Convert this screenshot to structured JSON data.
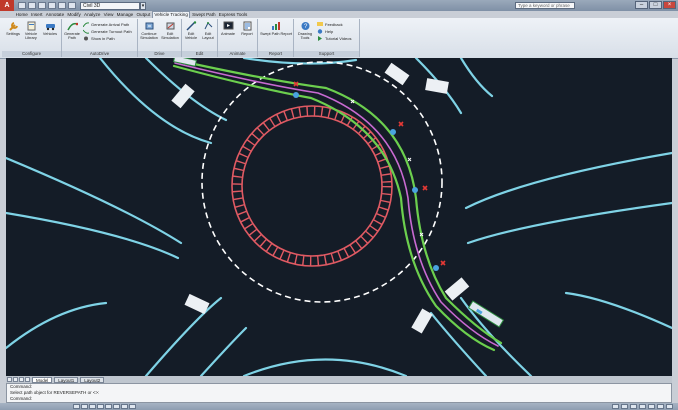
{
  "window": {
    "app_logo": "A",
    "workspace": "Civil 3D",
    "document_title": "",
    "help_search_placeholder": "Type a keyword or phrase",
    "controls": {
      "minimize": "–",
      "maximize": "□",
      "close": "×"
    }
  },
  "ribbon": {
    "tabs": [
      "Home",
      "Insert",
      "Annotate",
      "Modify",
      "Analyze",
      "View",
      "Manage",
      "Output",
      "Vehicle Tracking",
      "Swept Path",
      "Express Tools"
    ],
    "active_tab": "Vehicle Tracking",
    "panels": [
      {
        "title": "Configure",
        "tools": [
          {
            "label": "Settings",
            "icon": "wrench-icon"
          },
          {
            "label": "Vehicle Library",
            "icon": "library-icon"
          },
          {
            "label": "Vehicles",
            "icon": "vehicle-icon"
          }
        ]
      },
      {
        "title": "AutoDrive",
        "tools": [
          {
            "label": "Generate Path",
            "icon": "path-icon"
          }
        ],
        "rows": [
          "Generate Arrival Path",
          "Generate Turnout Path",
          "Show in Path"
        ]
      },
      {
        "title": "Drive",
        "tools": [
          {
            "label": "Continue Simulation",
            "icon": "drive-icon"
          },
          {
            "label": "Edit Simulation",
            "icon": "edit-icon"
          }
        ]
      },
      {
        "title": "Edit",
        "tools": [
          {
            "label": "Edit Vehicle",
            "icon": "edit-vehicle-icon"
          },
          {
            "label": "Edit Layout",
            "icon": "layout-icon"
          }
        ]
      },
      {
        "title": "Animate",
        "tools": [
          {
            "label": "Animate",
            "icon": "animate-icon"
          },
          {
            "label": "Report",
            "icon": "report-icon"
          }
        ]
      },
      {
        "title": "Report",
        "tools": [
          {
            "label": "Swept Path Report",
            "icon": "chart-icon"
          }
        ]
      },
      {
        "title": "Support",
        "tools": [
          {
            "label": "Drawing Tools",
            "icon": "support-icon"
          }
        ],
        "rows": [
          "Feedback",
          "Help",
          "Tutorial Videos"
        ]
      }
    ]
  },
  "layout_tabs": [
    "Model",
    "Layout1",
    "Layout2"
  ],
  "active_layout_tab": "Model",
  "command_line": {
    "history": "Command:",
    "prompt": "Select path object for REVERSEPATH or <>:",
    "current": "Command:"
  },
  "status": {
    "coordinates": ""
  }
}
